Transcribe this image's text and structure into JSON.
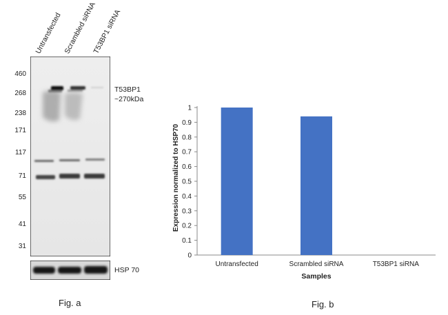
{
  "fig_a": {
    "lanes": [
      "Untransfected",
      "Scrambled siRNA",
      "T53BP1 siRNA"
    ],
    "markers": [
      "460",
      "268",
      "238",
      "171",
      "117",
      "71",
      "55",
      "41",
      "31"
    ],
    "target_label": "T53BP1",
    "target_size": "~270kDa",
    "loading_control": "HSP 70",
    "caption": "Fig. a"
  },
  "chart_data": {
    "type": "bar",
    "categories": [
      "Untransfected",
      "Scrambled siRNA",
      "T53BP1 siRNA"
    ],
    "values": [
      1.0,
      0.94,
      0.0
    ],
    "xlabel": "Samples",
    "ylabel": "Expression normalized to HSP70",
    "ylim": [
      0,
      1
    ],
    "yticks": [
      "0",
      "0.1",
      "0.2",
      "0.3",
      "0.4",
      "0.5",
      "0.6",
      "0.7",
      "0.8",
      "0.9",
      "1"
    ],
    "bar_color": "#4472C4",
    "grid": false
  },
  "fig_b": {
    "caption": "Fig. b"
  }
}
